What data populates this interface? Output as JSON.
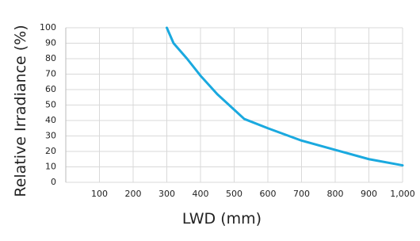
{
  "chart_data": {
    "type": "line",
    "x_label": "LWD (mm)",
    "y_label": "Relative Irradiance (%)",
    "x": [
      300,
      320,
      360,
      400,
      450,
      500,
      530,
      600,
      700,
      800,
      900,
      1000
    ],
    "series": [
      {
        "color": "#1aa9df",
        "values": [
          100,
          90,
          80,
          69,
          57,
          47,
          41,
          35,
          27,
          21,
          15,
          11
        ]
      }
    ],
    "xlim": [
      0,
      1000
    ],
    "xticks": [
      100,
      200,
      300,
      400,
      500,
      600,
      700,
      800,
      900,
      {
        "value": 1000,
        "label": "1,000"
      }
    ],
    "ylim": [
      0,
      100
    ],
    "yticks": [
      0,
      10,
      20,
      30,
      40,
      50,
      60,
      70,
      80,
      90,
      100
    ],
    "grid": true
  }
}
